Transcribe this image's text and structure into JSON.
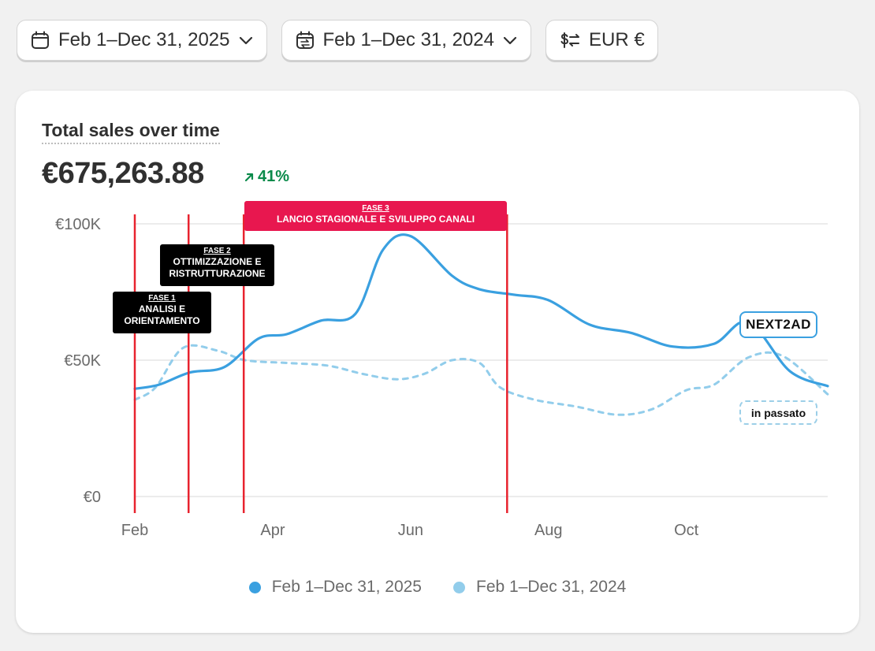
{
  "filters": {
    "current_range": "Feb 1–Dec 31, 2025",
    "compare_range": "Feb 1–Dec 31, 2024",
    "currency": "EUR €",
    "icons": [
      "calendar-icon",
      "calendar-compare-icon",
      "currency-swap-icon",
      "chevron-down-icon"
    ]
  },
  "card": {
    "title": "Total sales over time",
    "total": "€675,263.88",
    "change": "41%",
    "change_color": "#0a8a4a"
  },
  "annotations": {
    "fase1": {
      "tag": "FASE 1",
      "text": "ANALISI E ORIENTAMENTO"
    },
    "fase2": {
      "tag": "FASE 2",
      "text": "OTTIMIZZAZIONE E RISTRUTTURAZIONE"
    },
    "fase3": {
      "tag": "FASE 3",
      "text": "LANCIO STAGIONALE E SVILUPPO CANALI"
    },
    "brand": "NEXT2AD",
    "past_label": "in passato"
  },
  "chart_data": {
    "type": "line",
    "x_ticks": [
      "Feb",
      "Apr",
      "Jun",
      "Aug",
      "Oct"
    ],
    "x_tick_months": [
      1,
      3,
      5,
      7,
      9
    ],
    "y_ticks": [
      "€0",
      "€50K",
      "€100K"
    ],
    "y_tick_values": [
      0,
      50000,
      100000
    ],
    "ylim": [
      0,
      100000
    ],
    "xlim": [
      1,
      11.05
    ],
    "grid": true,
    "legend_position": "bottom",
    "phase_lines_months": [
      1,
      1.78,
      2.58,
      6.4
    ],
    "series": [
      {
        "name": "Feb 1–Dec 31, 2025",
        "color": "#3aa0e0",
        "style": "solid",
        "x": [
          1,
          1.35,
          1.8,
          2.3,
          2.8,
          3.2,
          3.7,
          4.2,
          4.6,
          5.0,
          5.6,
          6.0,
          6.5,
          7.0,
          7.6,
          8.2,
          8.8,
          9.4,
          9.9,
          10.5,
          11.05
        ],
        "values": [
          39500,
          41000,
          45500,
          47500,
          58000,
          59500,
          64500,
          67000,
          90500,
          95500,
          81000,
          76000,
          74000,
          72000,
          63000,
          60000,
          55000,
          56000,
          64000,
          46000,
          40500
        ]
      },
      {
        "name": "Feb 1–Dec 31, 2024",
        "color": "#92cdeb",
        "style": "dashed",
        "x": [
          1,
          1.3,
          1.7,
          2.2,
          2.6,
          3.2,
          3.8,
          4.3,
          4.8,
          5.2,
          5.6,
          6.0,
          6.3,
          6.8,
          7.4,
          8.0,
          8.5,
          9.0,
          9.4,
          9.9,
          10.4,
          11.05
        ],
        "values": [
          35500,
          40000,
          54500,
          53500,
          50000,
          49000,
          48000,
          45000,
          43000,
          45000,
          50000,
          49000,
          40000,
          35500,
          33000,
          30000,
          32000,
          39000,
          41000,
          51000,
          51500,
          37500
        ]
      }
    ]
  }
}
